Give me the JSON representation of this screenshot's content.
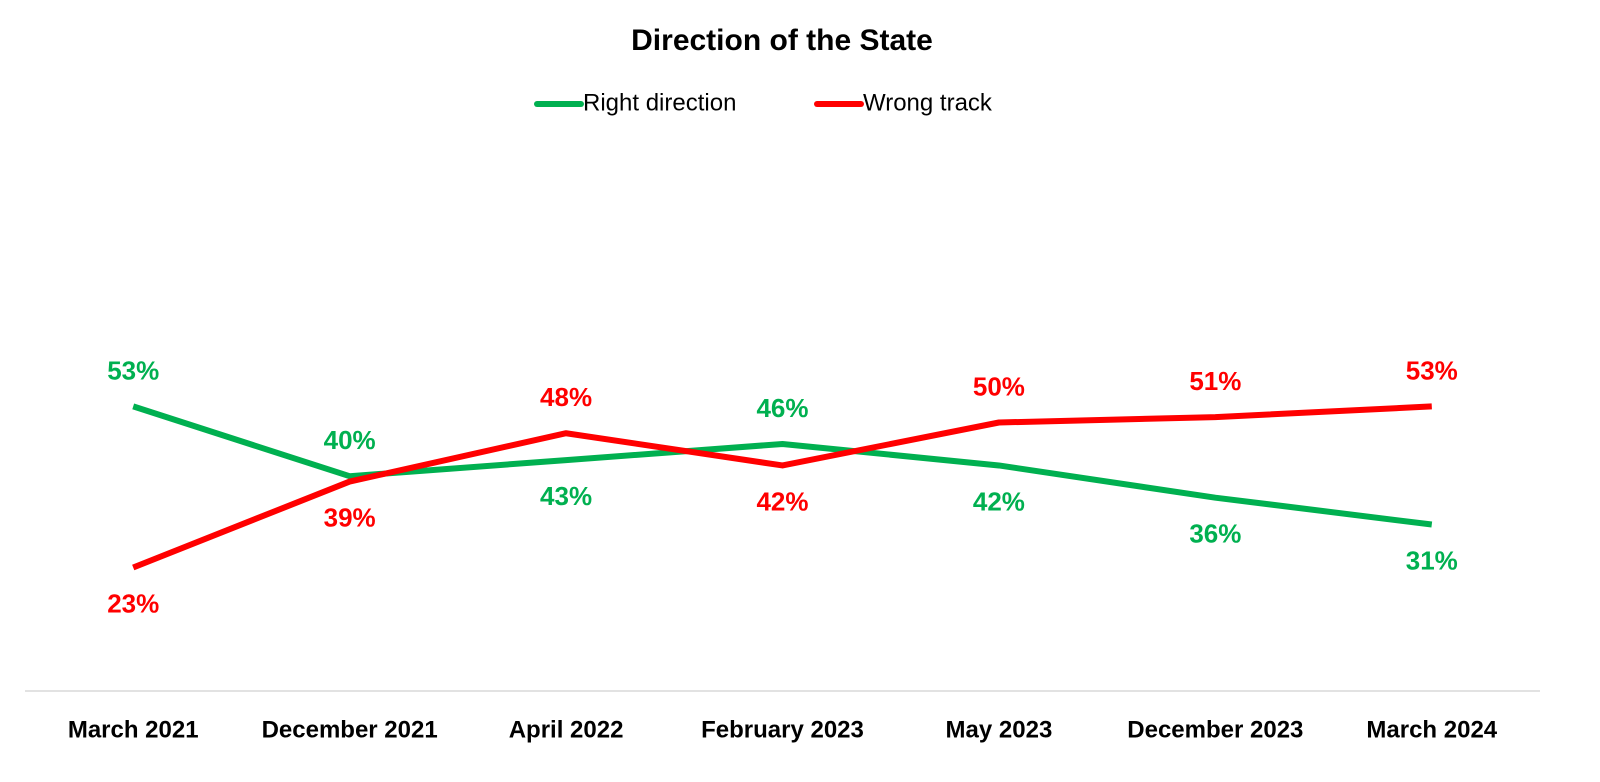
{
  "chart_data": {
    "type": "line",
    "title": "Direction of the State",
    "categories": [
      "March 2021",
      "December 2021",
      "April 2022",
      "February 2023",
      "May 2023",
      "December 2023",
      "March 2024"
    ],
    "series": [
      {
        "name": "Right direction",
        "color": "#00b050",
        "values": [
          53,
          40,
          43,
          46,
          42,
          36,
          31
        ],
        "value_labels": [
          "53%",
          "40%",
          "43%",
          "46%",
          "42%",
          "36%",
          "31%"
        ]
      },
      {
        "name": "Wrong track",
        "color": "#ff0000",
        "values": [
          23,
          39,
          48,
          42,
          50,
          51,
          53
        ],
        "value_labels": [
          "23%",
          "39%",
          "48%",
          "42%",
          "50%",
          "51%",
          "53%"
        ]
      }
    ],
    "ylim": [
      0,
      100
    ],
    "legend": "top"
  }
}
